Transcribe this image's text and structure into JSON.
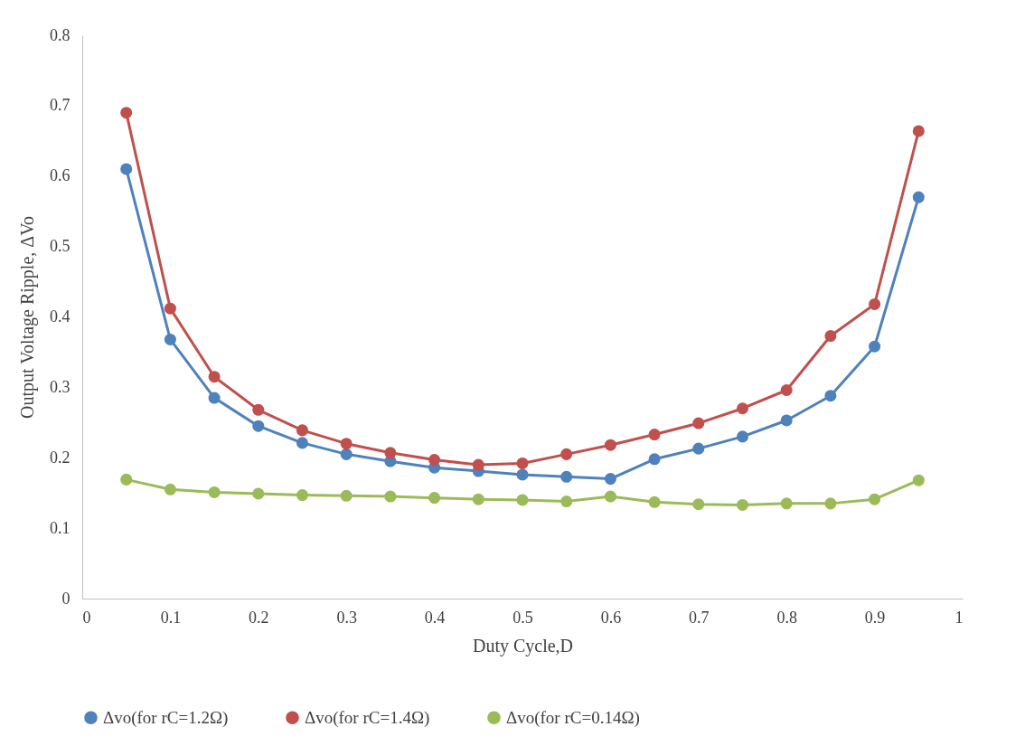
{
  "chart_data": {
    "type": "line",
    "xlabel": "Duty Cycle,D",
    "ylabel": "Output Voltage Ripple, ΔVo",
    "x": [
      0.05,
      0.1,
      0.15,
      0.2,
      0.25,
      0.3,
      0.35,
      0.4,
      0.45,
      0.5,
      0.55,
      0.6,
      0.65,
      0.7,
      0.75,
      0.8,
      0.85,
      0.9,
      0.95
    ],
    "series": [
      {
        "name": "Δvo(for rC=1.2Ω)",
        "color": "#4f81bd",
        "values": [
          0.61,
          0.368,
          0.285,
          0.245,
          0.221,
          0.205,
          0.195,
          0.186,
          0.181,
          0.176,
          0.173,
          0.17,
          0.198,
          0.213,
          0.23,
          0.253,
          0.288,
          0.358,
          0.57
        ]
      },
      {
        "name": "Δvo(for rC=1.4Ω)",
        "color": "#c0504d",
        "values": [
          0.69,
          0.412,
          0.315,
          0.268,
          0.239,
          0.22,
          0.207,
          0.197,
          0.19,
          0.192,
          0.205,
          0.218,
          0.233,
          0.249,
          0.27,
          0.296,
          0.373,
          0.418,
          0.664
        ]
      },
      {
        "name": "Δvo(for rC=0.14Ω)",
        "color": "#9bbb59",
        "values": [
          0.169,
          0.155,
          0.151,
          0.149,
          0.147,
          0.146,
          0.145,
          0.143,
          0.141,
          0.14,
          0.138,
          0.145,
          0.137,
          0.134,
          0.133,
          0.135,
          0.135,
          0.141,
          0.168
        ]
      }
    ],
    "xlim": [
      0,
      1
    ],
    "xticks": [
      0,
      0.1,
      0.2,
      0.3,
      0.4,
      0.5,
      0.6,
      0.7,
      0.8,
      0.9,
      1
    ],
    "ylim": [
      0,
      0.8
    ],
    "yticks": [
      0,
      0.1,
      0.2,
      0.3,
      0.4,
      0.5,
      0.6,
      0.7,
      0.8
    ],
    "grid": false,
    "legend": "bottom",
    "marker": "circle",
    "line_style": "solid"
  }
}
